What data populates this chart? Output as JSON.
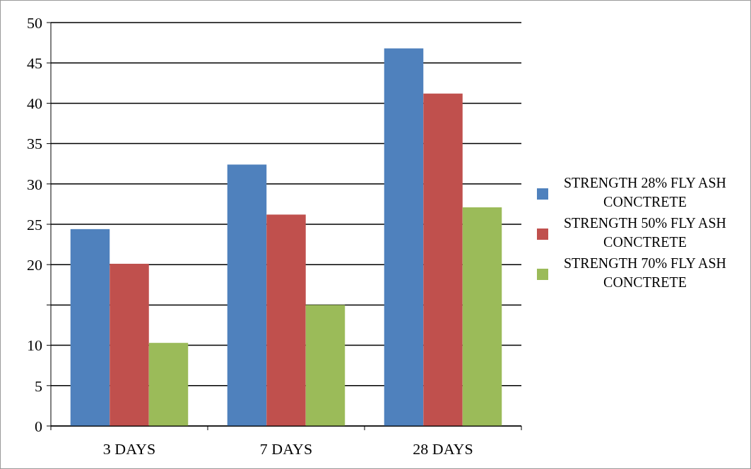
{
  "chart_data": {
    "type": "bar",
    "categories": [
      "3 DAYS",
      "7 DAYS",
      "28 DAYS"
    ],
    "series": [
      {
        "name": "STRENGTH 28% FLY ASH CONCTRETE",
        "color": "#4f81bd",
        "values": [
          24.4,
          32.4,
          46.8
        ]
      },
      {
        "name": "STRENGTH 50% FLY ASH CONCTRETE",
        "color": "#c0504d",
        "values": [
          20.1,
          26.2,
          41.2
        ]
      },
      {
        "name": "STRENGTH 70% FLY ASH CONCTRETE",
        "color": "#9bbb59",
        "values": [
          10.3,
          15.0,
          27.1
        ]
      }
    ],
    "ylim": [
      0,
      50
    ],
    "yticks": [
      0,
      5,
      10,
      {
        "value": 15,
        "label": null
      },
      20,
      25,
      30,
      35,
      40,
      45,
      50
    ],
    "grid": "y",
    "legend": "right"
  }
}
